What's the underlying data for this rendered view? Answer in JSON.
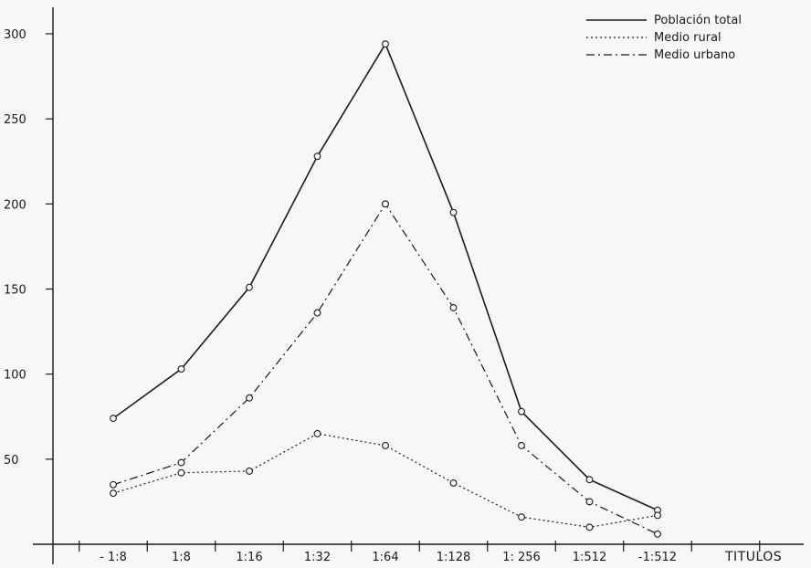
{
  "chart_data": {
    "type": "line",
    "categories": [
      "- 1:8",
      "1:8",
      "1:16",
      "1:32",
      "1:64",
      "1:128",
      "1: 256",
      "1:512",
      "-1:512"
    ],
    "xlabel": "TITULOS",
    "ylabel": "",
    "title": "",
    "ylim": [
      0,
      300
    ],
    "yticks": [
      50,
      100,
      150,
      200,
      250,
      300
    ],
    "grid": false,
    "legend_position": "top-right",
    "series": [
      {
        "name": "Población total",
        "style": "solid",
        "values": [
          74,
          103,
          151,
          228,
          294,
          195,
          78,
          38,
          20
        ]
      },
      {
        "name": "Medio rural",
        "style": "dotted",
        "values": [
          30,
          42,
          43,
          65,
          58,
          36,
          16,
          10,
          17
        ]
      },
      {
        "name": "Medio urbano",
        "style": "dashdot",
        "values": [
          35,
          48,
          86,
          136,
          200,
          139,
          58,
          25,
          6
        ]
      }
    ]
  }
}
